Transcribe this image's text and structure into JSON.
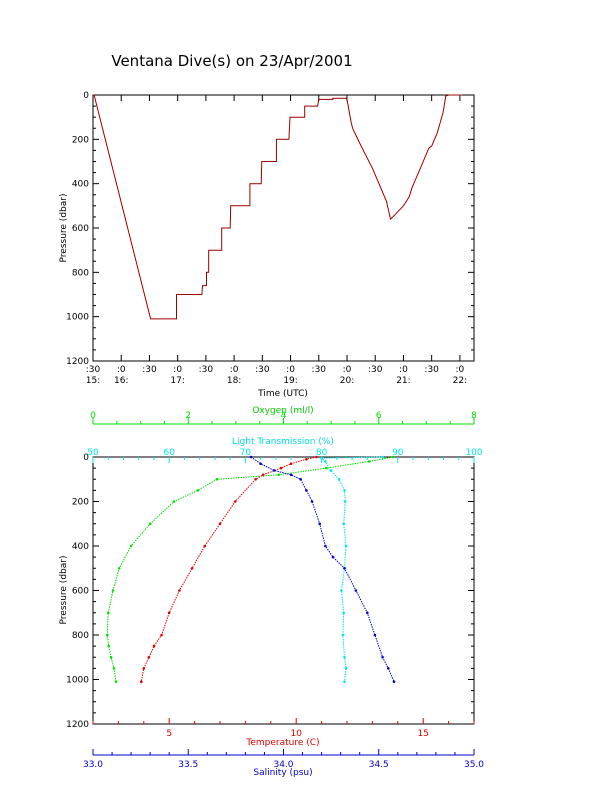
{
  "title": "Ventana Dive(s) on 23/Apr/2001",
  "colors": {
    "axis": "#000000",
    "trace": "#cc0000",
    "oxygen": "#00e000",
    "light": "#00e8e8",
    "temperature": "#dd0000",
    "salinity": "#0000cc"
  },
  "chart_data": [
    {
      "type": "line",
      "xlabel": "Time (UTC)",
      "ylabel": "Pressure (dbar)",
      "xlim": [
        15.5,
        22.25
      ],
      "ylim": [
        1200,
        0
      ],
      "x_tick_labels": [
        {
          "top": ":30",
          "bottom": "15:"
        },
        {
          "top": ":0",
          "bottom": "16:"
        },
        {
          "top": ":30",
          "bottom": ""
        },
        {
          "top": ":0",
          "bottom": "17:"
        },
        {
          "top": ":30",
          "bottom": ""
        },
        {
          "top": ":0",
          "bottom": "18:"
        },
        {
          "top": ":30",
          "bottom": ""
        },
        {
          "top": ":0",
          "bottom": "19:"
        },
        {
          "top": ":30",
          "bottom": ""
        },
        {
          "top": ":0",
          "bottom": "20:"
        },
        {
          "top": ":30",
          "bottom": ""
        },
        {
          "top": ":0",
          "bottom": "21:"
        },
        {
          "top": ":30",
          "bottom": ""
        },
        {
          "top": ":0",
          "bottom": "22:"
        }
      ],
      "y_tick_labels": [
        "0",
        "200",
        "400",
        "600",
        "800",
        "1000",
        "1200"
      ],
      "series": [
        {
          "x": [
            15.5,
            15.52,
            16.52,
            16.98,
            16.98,
            17.0,
            17.43,
            17.44,
            17.51,
            17.51,
            17.55,
            17.55,
            17.78,
            17.78,
            17.93,
            17.94,
            18.28,
            18.28,
            18.48,
            18.49,
            18.75,
            18.75,
            18.97,
            18.99,
            19.25,
            19.25,
            19.48,
            19.5,
            19.75,
            19.75,
            19.98,
            20.0,
            20.07,
            20.1,
            20.25,
            20.45,
            20.7,
            20.77,
            20.85,
            21.0,
            21.1,
            21.15,
            21.2,
            21.3,
            21.45,
            21.5,
            21.6,
            21.7,
            21.75,
            21.8,
            22.0,
            22.04
          ],
          "y": [
            0,
            0,
            1010,
            1010,
            900,
            900,
            900,
            860,
            860,
            800,
            800,
            700,
            700,
            600,
            600,
            500,
            500,
            400,
            400,
            300,
            300,
            200,
            200,
            100,
            100,
            50,
            50,
            20,
            20,
            15,
            15,
            20,
            120,
            150,
            230,
            330,
            480,
            560,
            540,
            500,
            460,
            420,
            390,
            330,
            240,
            230,
            170,
            80,
            5,
            0,
            0,
            0
          ]
        }
      ]
    },
    {
      "type": "scatter",
      "ylabel": "Pressure (dbar)",
      "ylim": [
        1200,
        0
      ],
      "y_tick_labels": [
        "0",
        "200",
        "400",
        "600",
        "800",
        "1000",
        "1200"
      ],
      "axes": [
        {
          "name": "Oxygen (ml/l)",
          "position": "top",
          "range": [
            0,
            8
          ],
          "tick_labels": [
            "0",
            "2",
            "4",
            "6",
            "8"
          ]
        },
        {
          "name": "Light Transmission (%)",
          "position": "top",
          "range": [
            50,
            100
          ],
          "tick_labels": [
            "50",
            "60",
            "70",
            "80",
            "90",
            "100"
          ]
        },
        {
          "name": "Temperature (C)",
          "position": "bottom",
          "range": [
            2,
            17
          ],
          "tick_labels": [
            "5",
            "10",
            "15"
          ]
        },
        {
          "name": "Salinity (psu)",
          "position": "bottom",
          "range": [
            33.0,
            35.0
          ],
          "tick_labels": [
            "33.0",
            "33.5",
            "34.0",
            "34.5",
            "35.0"
          ]
        }
      ],
      "series": [
        {
          "name": "Oxygen (ml/l)",
          "axis": 0,
          "x": [
            6.3,
            5.8,
            4.9,
            3.9,
            2.6,
            2.2,
            1.7,
            1.2,
            0.8,
            0.55,
            0.42,
            0.32,
            0.3,
            0.33,
            0.38,
            0.44,
            0.48
          ],
          "y": [
            0,
            20,
            50,
            80,
            100,
            150,
            200,
            300,
            400,
            500,
            600,
            700,
            800,
            850,
            900,
            950,
            1010
          ]
        },
        {
          "name": "Light Transmission (%)",
          "axis": 1,
          "x": [
            88.0,
            80.0,
            80.5,
            81.2,
            82.3,
            83.0,
            83.1,
            82.9,
            83.2,
            83.0,
            82.6,
            82.9,
            82.8,
            83.0,
            83.2,
            83.0
          ],
          "y": [
            0,
            5,
            20,
            60,
            100,
            150,
            200,
            300,
            400,
            500,
            600,
            700,
            800,
            900,
            950,
            1010
          ]
        },
        {
          "name": "Temperature (C)",
          "axis": 2,
          "x": [
            10.8,
            10.4,
            9.8,
            9.4,
            8.7,
            8.4,
            7.6,
            7.0,
            6.4,
            5.9,
            5.4,
            5.0,
            4.7,
            4.4,
            4.2,
            4.0,
            3.9
          ],
          "y": [
            0,
            10,
            30,
            50,
            80,
            100,
            200,
            300,
            400,
            500,
            600,
            700,
            800,
            850,
            900,
            950,
            1010
          ]
        },
        {
          "name": "Salinity (psu)",
          "axis": 3,
          "x": [
            33.83,
            33.88,
            33.95,
            34.04,
            34.09,
            34.12,
            34.15,
            34.19,
            34.22,
            34.26,
            34.32,
            34.38,
            34.44,
            34.48,
            34.52,
            34.55,
            34.58
          ],
          "y": [
            0,
            30,
            60,
            80,
            100,
            150,
            200,
            300,
            400,
            450,
            500,
            600,
            700,
            800,
            900,
            950,
            1010
          ]
        }
      ]
    }
  ]
}
